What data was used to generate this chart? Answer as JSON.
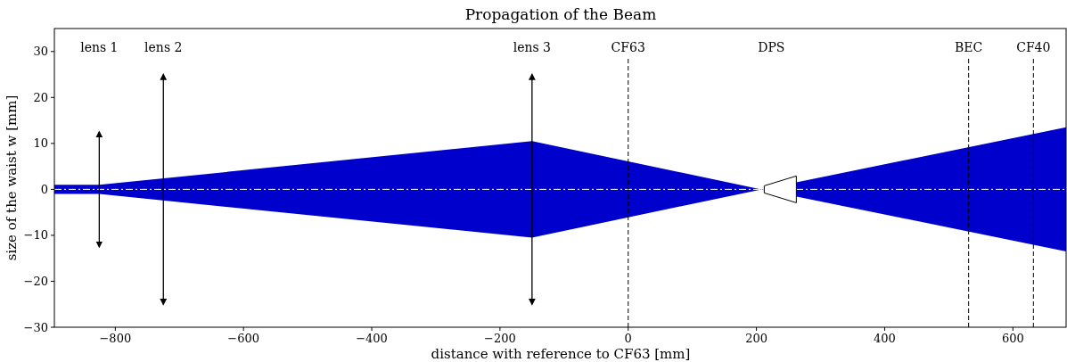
{
  "chart_data": {
    "type": "line",
    "title": "Propagation of the Beam",
    "xlabel": "distance with reference to CF63 [mm]",
    "ylabel": "size of the waist w [mm]",
    "xlim": [
      -895,
      683
    ],
    "ylim": [
      -30,
      35
    ],
    "xticks": [
      -800,
      -600,
      -400,
      -200,
      0,
      200,
      400,
      600
    ],
    "yticks": [
      -30,
      -20,
      -10,
      0,
      10,
      20,
      30
    ],
    "grid": false,
    "series": [
      {
        "color": "#ffffff",
        "line_style": "dashed",
        "x": [
          -895,
          -825,
          -150,
          208,
          683
        ],
        "values": [
          0,
          0,
          0,
          0,
          0
        ],
        "upper": [
          1,
          1,
          10.5,
          0,
          13.5
        ],
        "lower": [
          -1,
          -1,
          -10.5,
          0,
          -13.5
        ]
      },
      {
        "name": "lens 1",
        "color": "#000000",
        "x": [
          -825,
          -825
        ],
        "values": [
          -12.5,
          12.5
        ]
      },
      {
        "name": "lens 2",
        "color": "#000000",
        "x": [
          -725,
          -725
        ],
        "values": [
          -25,
          25
        ]
      },
      {
        "name": "lens 3",
        "color": "#000000",
        "x": [
          -150,
          -150
        ],
        "values": [
          -25,
          25
        ]
      }
    ],
    "ref_lines": [
      {
        "axis": "x",
        "value": 0,
        "label": "CF63",
        "color": "#000000",
        "line_style": "dashed"
      },
      {
        "axis": "x",
        "value": 531,
        "label": "BEC",
        "color": "#000000",
        "line_style": "dashed"
      },
      {
        "axis": "x",
        "value": 632,
        "label": "CF40",
        "color": "#000000",
        "line_style": "dashed"
      }
    ],
    "annotations": [
      "DPS"
    ]
  }
}
